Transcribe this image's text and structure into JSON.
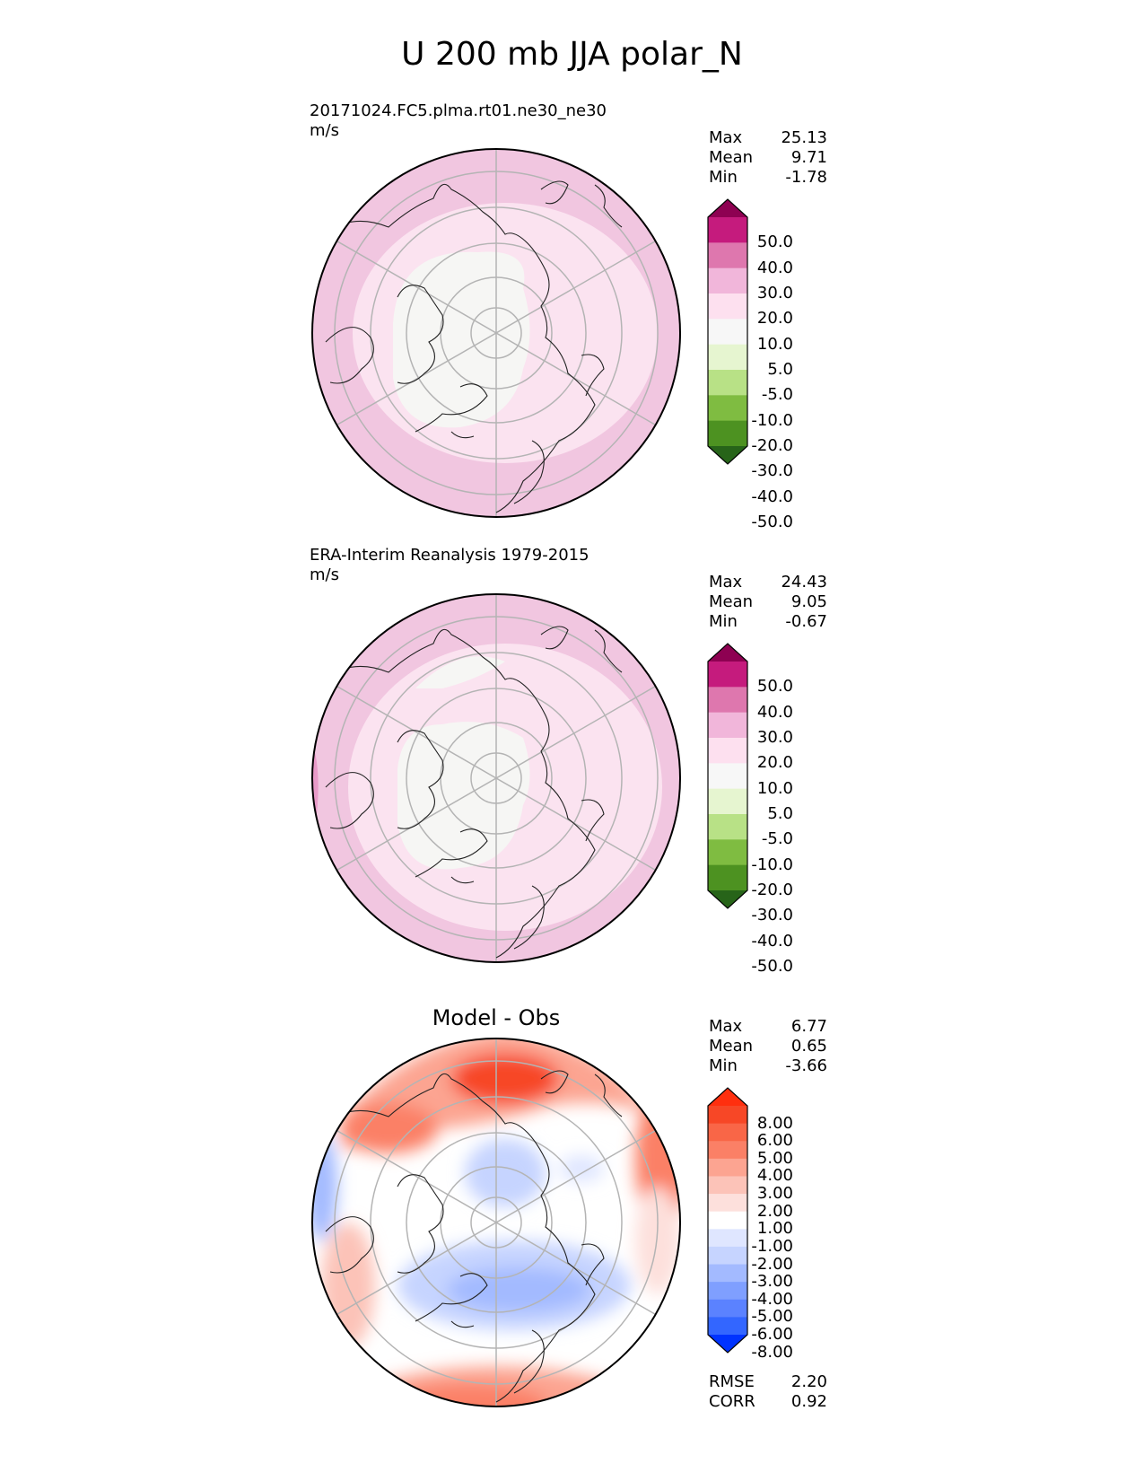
{
  "figure": {
    "title": "U 200 mb JJA polar_N"
  },
  "colors": {
    "pink_scale": [
      "#276419",
      "#4d9221",
      "#7fbc41",
      "#b8e186",
      "#e6f5d0",
      "#f7f7f7",
      "#fde0ef",
      "#f1b6da",
      "#de77ae",
      "#c51b7d",
      "#8e0152"
    ],
    "diff_scale": [
      "#0033ff",
      "#3366ff",
      "#5b82ff",
      "#7f9fff",
      "#a3baff",
      "#c6d4ff",
      "#dfe6ff",
      "#ffffff",
      "#fde0dc",
      "#fcc3b8",
      "#fca491",
      "#fb8066",
      "#f96647",
      "#f74726",
      "#ff2f0e"
    ]
  },
  "chart_data": [
    {
      "type": "heatmap",
      "projection": "north polar stereographic",
      "title": "20171024.FC5.plma.rt01.ne30_ne30",
      "units": "m/s",
      "stats": {
        "max_label": "Max",
        "max": "25.13",
        "mean_label": "Mean",
        "mean": "9.71",
        "min_label": "Min",
        "min": "-1.78"
      },
      "colorbar": {
        "levels": [
          "50.0",
          "40.0",
          "30.0",
          "20.0",
          "10.0",
          "5.0",
          "-5.0",
          "-10.0",
          "-20.0",
          "-30.0",
          "-40.0",
          "-50.0"
        ]
      }
    },
    {
      "type": "heatmap",
      "projection": "north polar stereographic",
      "title": "ERA-Interim Reanalysis 1979-2015",
      "units": "m/s",
      "stats": {
        "max_label": "Max",
        "max": "24.43",
        "mean_label": "Mean",
        "mean": "9.05",
        "min_label": "Min",
        "min": "-0.67"
      },
      "colorbar": {
        "levels": [
          "50.0",
          "40.0",
          "30.0",
          "20.0",
          "10.0",
          "5.0",
          "-5.0",
          "-10.0",
          "-20.0",
          "-30.0",
          "-40.0",
          "-50.0"
        ]
      }
    },
    {
      "type": "heatmap",
      "projection": "north polar stereographic",
      "title": "Model - Obs",
      "stats": {
        "max_label": "Max",
        "max": "6.77",
        "mean_label": "Mean",
        "mean": "0.65",
        "min_label": "Min",
        "min": "-3.66"
      },
      "colorbar": {
        "levels": [
          "8.00",
          "6.00",
          "5.00",
          "4.00",
          "3.00",
          "2.00",
          "1.00",
          "-1.00",
          "-2.00",
          "-3.00",
          "-4.00",
          "-5.00",
          "-6.00",
          "-8.00"
        ]
      },
      "metrics": {
        "rmse_label": "RMSE",
        "rmse": "2.20",
        "corr_label": "CORR",
        "corr": "0.92"
      }
    }
  ]
}
